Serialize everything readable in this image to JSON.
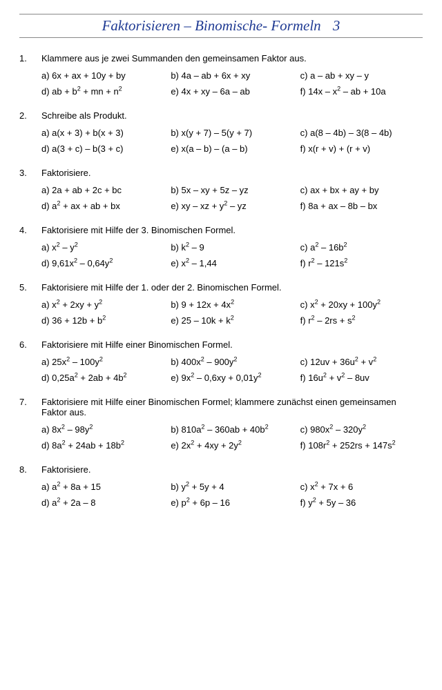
{
  "header": {
    "title": "Faktorisieren – Binomische- Formeln",
    "page": "3"
  },
  "problems": [
    {
      "num": "1.",
      "text": "Klammere aus je zwei Summanden den gemeinsamen Faktor aus.",
      "items": [
        "a) 6x + ax + 10y + by",
        "b) 4a – ab + 6x + xy",
        "c) a – ab + xy – y",
        "d) ab + b<sup>2</sup> + mn + n<sup>2</sup>",
        "e) 4x + xy – 6a – ab",
        "f) 14x – x<sup>2</sup> – ab + 10a"
      ]
    },
    {
      "num": "2.",
      "text": "Schreibe als Produkt.",
      "items": [
        "a) a(x + 3) + b(x + 3)",
        "b) x(y + 7) – 5(y + 7)",
        "c) a(8 – 4b) – 3(8 – 4b)",
        "d) a(3 + c) – b(3 + c)",
        "e) x(a – b) – (a – b)",
        "f) x(r + v) + (r + v)"
      ]
    },
    {
      "num": "3.",
      "text": "Faktorisiere.",
      "items": [
        "a) 2a + ab + 2c + bc",
        "b) 5x – xy + 5z – yz",
        "c) ax + bx + ay + by",
        "d) a<sup>2</sup> + ax + ab + bx",
        "e) xy – xz + y<sup>2</sup> – yz",
        "f) 8a + ax – 8b – bx"
      ]
    },
    {
      "num": "4.",
      "text": "Faktorisiere mit Hilfe der 3. Binomischen Formel.",
      "items": [
        "a) x<sup>2</sup> – y<sup>2</sup>",
        "b) k<sup>2</sup> – 9",
        "c) a<sup>2</sup> – 16b<sup>2</sup>",
        "d) 9,61x<sup>2</sup> – 0,64y<sup>2</sup>",
        "e) x<sup>2</sup> – 1,44",
        "f) r<sup>2</sup> – 121s<sup>2</sup>"
      ]
    },
    {
      "num": "5.",
      "text": "Faktorisiere mit Hilfe der 1. oder der 2. Binomischen Formel.",
      "items": [
        "a) x<sup>2</sup> + 2xy + y<sup>2</sup>",
        "b) 9 + 12x + 4x<sup>2</sup>",
        "c) x<sup>2</sup> + 20xy + 100y<sup>2</sup>",
        "d) 36 + 12b + b<sup>2</sup>",
        "e) 25 – 10k + k<sup>2</sup>",
        "f) r<sup>2</sup> – 2rs + s<sup>2</sup>"
      ]
    },
    {
      "num": "6.",
      "text": "Faktorisiere mit Hilfe einer Binomischen Formel.",
      "items": [
        "a) 25x<sup>2</sup> – 100y<sup>2</sup>",
        "b) 400x<sup>2</sup> – 900y<sup>2</sup>",
        "c) 12uv + 36u<sup>2</sup> + v<sup>2</sup>",
        "d) 0,25a<sup>2</sup> + 2ab + 4b<sup>2</sup>",
        "e) 9x<sup>2</sup> – 0,6xy + 0,01y<sup>2</sup>",
        "f) 16u<sup>2</sup> + v<sup>2</sup> – 8uv"
      ]
    },
    {
      "num": "7.",
      "text": "Faktorisiere mit Hilfe einer Binomischen Formel; klammere zunächst einen gemeinsamen Faktor aus.",
      "items": [
        "a) 8x<sup>2</sup> – 98y<sup>2</sup>",
        "b) 810a<sup>2</sup> – 360ab + 40b<sup>2</sup>",
        "c) 980x<sup>2</sup> – 320y<sup>2</sup>",
        "d) 8a<sup>2</sup> + 24ab + 18b<sup>2</sup>",
        "e) 2x<sup>2</sup> + 4xy + 2y<sup>2</sup>",
        "f) 108r<sup>2</sup> + 252rs + 147s<sup>2</sup>"
      ]
    },
    {
      "num": "8.",
      "text": "Faktorisiere.",
      "items": [
        "a) a<sup>2</sup> + 8a + 15",
        "b) y<sup>2</sup> + 5y + 4",
        "c) x<sup>2</sup> + 7x + 6",
        "d) a<sup>2</sup> + 2a – 8",
        "e) p<sup>2</sup> + 6p – 16",
        "f) y<sup>2</sup> + 5y – 36"
      ]
    }
  ]
}
